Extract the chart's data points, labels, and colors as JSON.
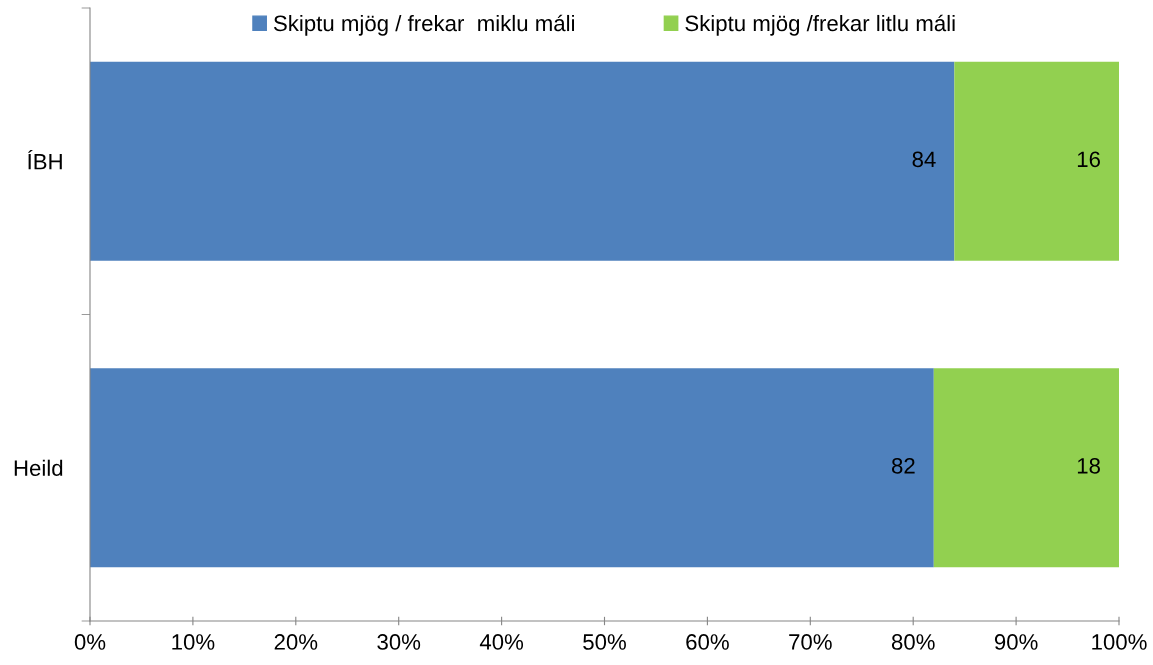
{
  "chart_data": {
    "type": "bar",
    "orientation": "horizontal",
    "stacked": true,
    "categories": [
      "ÍBH",
      "Heild"
    ],
    "series": [
      {
        "name": "Skiptu mjög / frekar  miklu máli",
        "color": "#4f81bd",
        "values": [
          84,
          82
        ]
      },
      {
        "name": "Skiptu mjög /frekar litlu máli",
        "color": "#92d050",
        "values": [
          16,
          18
        ]
      }
    ],
    "xlim": [
      0,
      100
    ],
    "xticks": [
      {
        "value": 0,
        "label": "0%"
      },
      {
        "value": 10,
        "label": "10%"
      },
      {
        "value": 20,
        "label": "20%"
      },
      {
        "value": 30,
        "label": "30%"
      },
      {
        "value": 40,
        "label": "40%"
      },
      {
        "value": 50,
        "label": "50%"
      },
      {
        "value": 60,
        "label": "60%"
      },
      {
        "value": 70,
        "label": "70%"
      },
      {
        "value": 80,
        "label": "80%"
      },
      {
        "value": 90,
        "label": "90%"
      },
      {
        "value": 100,
        "label": "100%"
      }
    ],
    "data_labels": true,
    "legend": "top",
    "grid": false
  }
}
